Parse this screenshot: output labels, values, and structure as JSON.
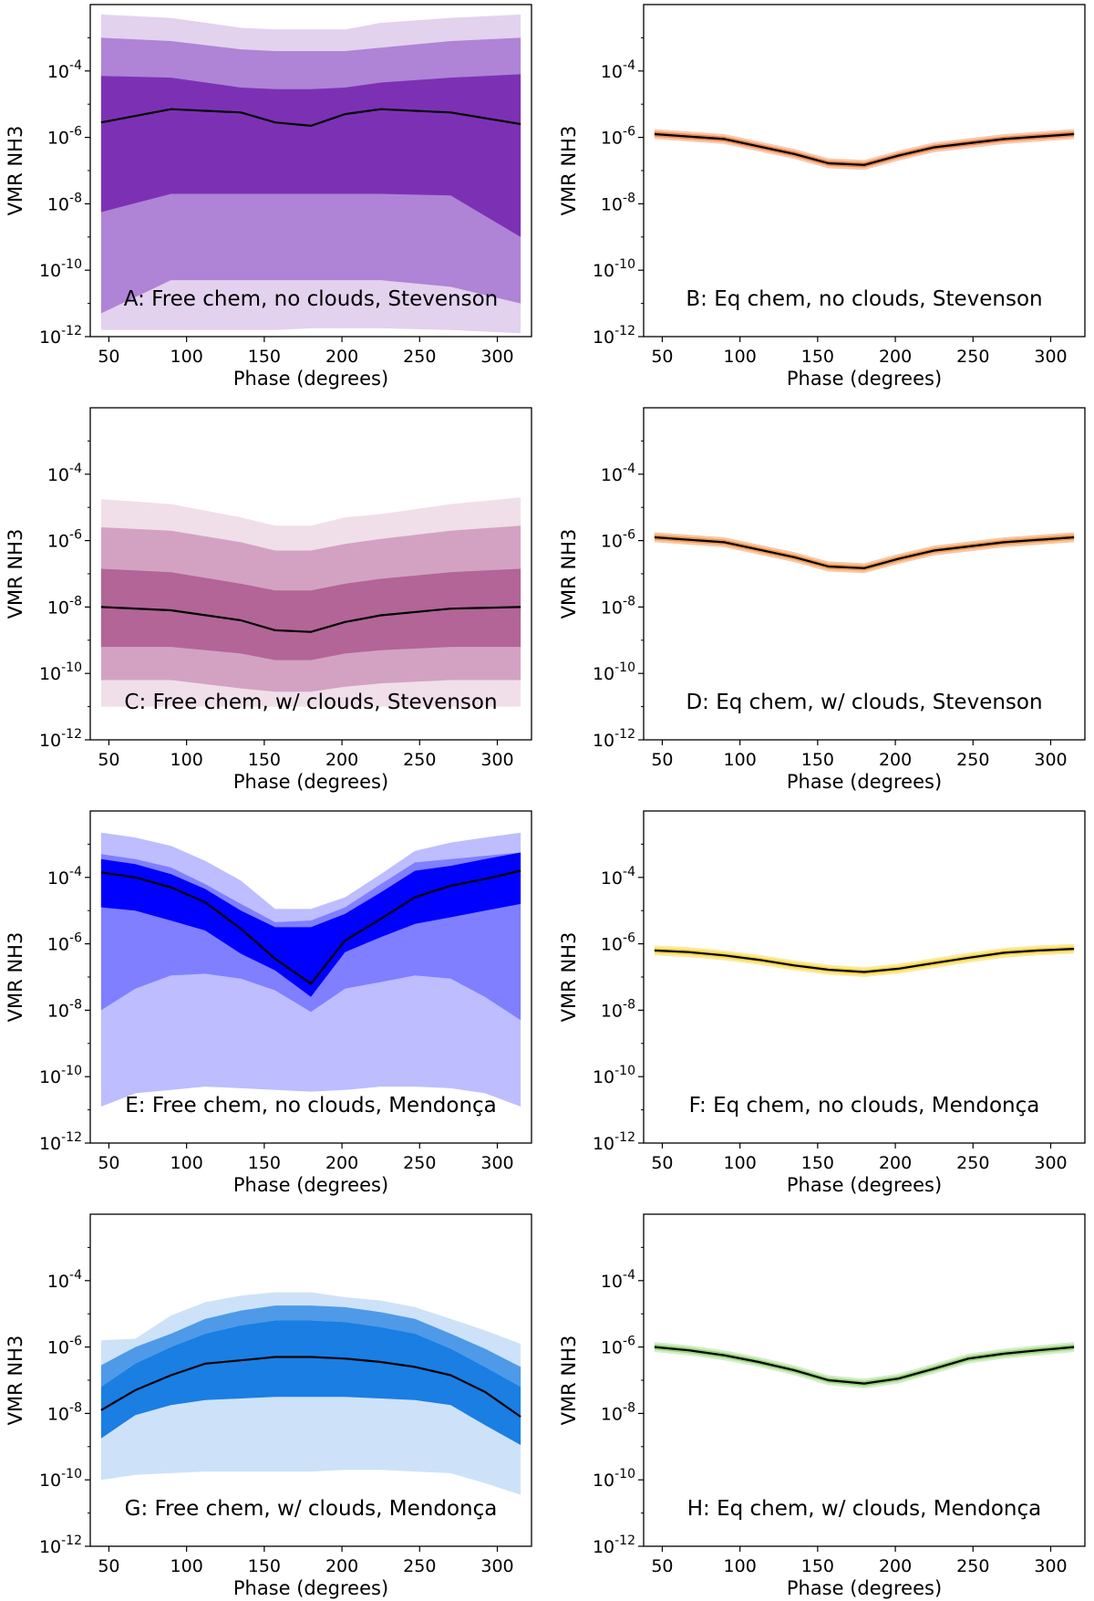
{
  "chart_data": [
    {
      "type": "area",
      "panel_label": "A: Free chem, no clouds, Stevenson",
      "xlabel": "Phase (degrees)",
      "ylabel": "VMR NH3",
      "xlim": [
        38,
        322
      ],
      "ylim_log10": [
        -12,
        -2
      ],
      "xticks": [
        "50",
        "100",
        "150",
        "200",
        "250",
        "300"
      ],
      "yticks": [
        "10^-4",
        "10^-6",
        "10^-8",
        "10^-10",
        "10^-12"
      ],
      "median_color": "#000000",
      "x": [
        45,
        90,
        135,
        157,
        180,
        202,
        225,
        270,
        315
      ],
      "series": [
        {
          "color": "#e2d2ee",
          "upper": [
            -2.3,
            -2.4,
            -2.7,
            -2.75,
            -2.75,
            -2.75,
            -2.55,
            -2.4,
            -2.3
          ],
          "lower": [
            -11.8,
            -11.8,
            -11.8,
            -11.8,
            -11.75,
            -11.75,
            -11.75,
            -11.8,
            -11.9
          ]
        },
        {
          "color": "#af83d6",
          "upper": [
            -3.0,
            -3.1,
            -3.35,
            -3.4,
            -3.4,
            -3.4,
            -3.3,
            -3.1,
            -3.0
          ],
          "lower": [
            -11.3,
            -10.3,
            -10.3,
            -10.3,
            -10.3,
            -10.3,
            -10.3,
            -10.5,
            -11.0
          ]
        },
        {
          "color": "#7c31b4",
          "upper": [
            -4.15,
            -4.2,
            -4.5,
            -4.55,
            -4.55,
            -4.5,
            -4.35,
            -4.2,
            -4.1
          ],
          "lower": [
            -8.25,
            -7.7,
            -7.7,
            -7.7,
            -7.7,
            -7.7,
            -7.7,
            -7.75,
            -9.0
          ]
        }
      ],
      "median": [
        -5.55,
        -5.15,
        -5.25,
        -5.55,
        -5.65,
        -5.3,
        -5.15,
        -5.25,
        -5.6
      ]
    },
    {
      "type": "area",
      "panel_label": "B: Eq chem, no clouds, Stevenson",
      "xlabel": "Phase (degrees)",
      "ylabel": "VMR NH3",
      "xlim": [
        38,
        322
      ],
      "ylim_log10": [
        -12,
        -2
      ],
      "xticks": [
        "50",
        "100",
        "150",
        "200",
        "250",
        "300"
      ],
      "yticks": [
        "10^-4",
        "10^-6",
        "10^-8",
        "10^-10",
        "10^-12"
      ],
      "median_color": "#000000",
      "x": [
        45,
        90,
        135,
        157,
        180,
        202,
        225,
        270,
        315
      ],
      "series": [
        {
          "color": "#f8c9ad",
          "upper": [
            -5.75,
            -5.9,
            -6.35,
            -6.63,
            -6.68,
            -6.4,
            -6.15,
            -5.9,
            -5.75
          ],
          "lower": [
            -6.05,
            -6.2,
            -6.65,
            -6.93,
            -6.98,
            -6.7,
            -6.45,
            -6.2,
            -6.05
          ]
        },
        {
          "color": "#ec8a56",
          "upper": [
            -5.82,
            -5.97,
            -6.42,
            -6.7,
            -6.75,
            -6.47,
            -6.22,
            -5.97,
            -5.82
          ],
          "lower": [
            -5.98,
            -6.13,
            -6.58,
            -6.86,
            -6.91,
            -6.63,
            -6.38,
            -6.13,
            -5.98
          ]
        }
      ],
      "median": [
        -5.9,
        -6.05,
        -6.5,
        -6.78,
        -6.83,
        -6.55,
        -6.3,
        -6.05,
        -5.9
      ]
    },
    {
      "type": "area",
      "panel_label": "C: Free chem, w/ clouds, Stevenson",
      "xlabel": "Phase (degrees)",
      "ylabel": "VMR NH3",
      "xlim": [
        38,
        322
      ],
      "ylim_log10": [
        -12,
        -2
      ],
      "xticks": [
        "50",
        "100",
        "150",
        "200",
        "250",
        "300"
      ],
      "yticks": [
        "10^-4",
        "10^-6",
        "10^-8",
        "10^-10",
        "10^-12"
      ],
      "median_color": "#000000",
      "x": [
        45,
        90,
        135,
        157,
        180,
        202,
        225,
        270,
        315
      ],
      "series": [
        {
          "color": "#f0dfe8",
          "upper": [
            -4.75,
            -4.9,
            -5.3,
            -5.55,
            -5.55,
            -5.3,
            -5.2,
            -4.9,
            -4.7
          ],
          "lower": [
            -11.0,
            -11.0,
            -11.0,
            -11.0,
            -11.0,
            -11.0,
            -11.0,
            -11.0,
            -11.0
          ]
        },
        {
          "color": "#d3a2c2",
          "upper": [
            -5.6,
            -5.7,
            -6.05,
            -6.3,
            -6.3,
            -6.1,
            -5.95,
            -5.7,
            -5.55
          ],
          "lower": [
            -10.2,
            -10.2,
            -10.45,
            -10.55,
            -10.55,
            -10.4,
            -10.3,
            -10.2,
            -10.2
          ]
        },
        {
          "color": "#b26596",
          "upper": [
            -6.85,
            -6.95,
            -7.3,
            -7.5,
            -7.5,
            -7.3,
            -7.15,
            -6.95,
            -6.85
          ],
          "lower": [
            -9.2,
            -9.2,
            -9.4,
            -9.6,
            -9.6,
            -9.4,
            -9.3,
            -9.2,
            -9.2
          ]
        }
      ],
      "median": [
        -8.0,
        -8.1,
        -8.4,
        -8.7,
        -8.75,
        -8.45,
        -8.25,
        -8.05,
        -8.0
      ]
    },
    {
      "type": "area",
      "panel_label": "D: Eq chem, w/ clouds, Stevenson",
      "xlabel": "Phase (degrees)",
      "ylabel": "VMR NH3",
      "xlim": [
        38,
        322
      ],
      "ylim_log10": [
        -12,
        -2
      ],
      "xticks": [
        "50",
        "100",
        "150",
        "200",
        "250",
        "300"
      ],
      "yticks": [
        "10^-4",
        "10^-6",
        "10^-8",
        "10^-10",
        "10^-12"
      ],
      "median_color": "#000000",
      "x": [
        45,
        90,
        135,
        157,
        180,
        202,
        225,
        270,
        315
      ],
      "series": [
        {
          "color": "#f7c8a4",
          "upper": [
            -5.75,
            -5.9,
            -6.35,
            -6.63,
            -6.68,
            -6.4,
            -6.15,
            -5.9,
            -5.75
          ],
          "lower": [
            -6.05,
            -6.2,
            -6.65,
            -6.93,
            -6.98,
            -6.7,
            -6.45,
            -6.2,
            -6.05
          ]
        },
        {
          "color": "#ee9a52",
          "upper": [
            -5.82,
            -5.97,
            -6.42,
            -6.7,
            -6.75,
            -6.47,
            -6.22,
            -5.97,
            -5.82
          ],
          "lower": [
            -5.98,
            -6.13,
            -6.58,
            -6.86,
            -6.91,
            -6.63,
            -6.38,
            -6.13,
            -5.98
          ]
        }
      ],
      "median": [
        -5.9,
        -6.05,
        -6.5,
        -6.78,
        -6.83,
        -6.55,
        -6.3,
        -6.05,
        -5.9
      ]
    },
    {
      "type": "area",
      "panel_label": "E: Free chem, no clouds, Mendonça",
      "xlabel": "Phase (degrees)",
      "ylabel": "VMR NH3",
      "xlim": [
        38,
        322
      ],
      "ylim_log10": [
        -12,
        -2
      ],
      "xticks": [
        "50",
        "100",
        "150",
        "200",
        "250",
        "300"
      ],
      "yticks": [
        "10^-4",
        "10^-6",
        "10^-8",
        "10^-10",
        "10^-12"
      ],
      "median_color": "#000000",
      "x": [
        45,
        67,
        90,
        112,
        135,
        157,
        180,
        202,
        225,
        247,
        270,
        292,
        315
      ],
      "series": [
        {
          "color": "#bdbdff",
          "upper": [
            -2.65,
            -2.8,
            -3.05,
            -3.5,
            -4.1,
            -4.95,
            -4.95,
            -4.6,
            -3.9,
            -3.2,
            -2.95,
            -2.8,
            -2.65
          ],
          "lower": [
            -10.9,
            -10.5,
            -10.4,
            -10.3,
            -10.35,
            -10.4,
            -10.45,
            -10.4,
            -10.3,
            -10.3,
            -10.35,
            -10.5,
            -10.9
          ]
        },
        {
          "color": "#7f7fff",
          "upper": [
            -3.3,
            -3.45,
            -3.7,
            -4.2,
            -4.8,
            -5.35,
            -5.3,
            -4.9,
            -4.2,
            -3.55,
            -3.45,
            -3.35,
            -3.25
          ],
          "lower": [
            -8.0,
            -7.35,
            -6.95,
            -6.9,
            -7.05,
            -7.4,
            -8.05,
            -7.35,
            -7.15,
            -6.95,
            -7.05,
            -7.6,
            -8.3
          ]
        },
        {
          "color": "#0000ff",
          "upper": [
            -3.45,
            -3.6,
            -3.9,
            -4.35,
            -5.0,
            -5.5,
            -5.5,
            -5.1,
            -4.45,
            -3.8,
            -3.65,
            -3.45,
            -3.25
          ],
          "lower": [
            -4.9,
            -5.0,
            -5.3,
            -5.6,
            -6.3,
            -6.8,
            -7.6,
            -6.25,
            -5.8,
            -5.4,
            -5.2,
            -5.0,
            -4.8
          ]
        }
      ],
      "median": [
        -3.85,
        -4.0,
        -4.3,
        -4.75,
        -5.55,
        -6.45,
        -7.2,
        -5.9,
        -5.25,
        -4.6,
        -4.25,
        -4.05,
        -3.8
      ]
    },
    {
      "type": "area",
      "panel_label": "F: Eq chem, no clouds, Mendonça",
      "xlabel": "Phase (degrees)",
      "ylabel": "VMR NH3",
      "xlim": [
        38,
        322
      ],
      "ylim_log10": [
        -12,
        -2
      ],
      "xticks": [
        "50",
        "100",
        "150",
        "200",
        "250",
        "300"
      ],
      "yticks": [
        "10^-4",
        "10^-6",
        "10^-8",
        "10^-10",
        "10^-12"
      ],
      "median_color": "#000000",
      "x": [
        45,
        67,
        90,
        112,
        135,
        157,
        180,
        202,
        225,
        247,
        270,
        292,
        315
      ],
      "series": [
        {
          "color": "#fbeb9c",
          "upper": [
            -6.05,
            -6.1,
            -6.2,
            -6.33,
            -6.5,
            -6.63,
            -6.7,
            -6.6,
            -6.43,
            -6.27,
            -6.12,
            -6.05,
            -6.0
          ],
          "lower": [
            -6.35,
            -6.4,
            -6.5,
            -6.63,
            -6.8,
            -6.93,
            -7.0,
            -6.9,
            -6.73,
            -6.57,
            -6.42,
            -6.35,
            -6.3
          ]
        },
        {
          "color": "#f5d54f",
          "upper": [
            -6.12,
            -6.17,
            -6.27,
            -6.4,
            -6.57,
            -6.7,
            -6.77,
            -6.67,
            -6.5,
            -6.34,
            -6.19,
            -6.12,
            -6.07
          ],
          "lower": [
            -6.28,
            -6.33,
            -6.43,
            -6.56,
            -6.73,
            -6.86,
            -6.93,
            -6.83,
            -6.66,
            -6.5,
            -6.35,
            -6.28,
            -6.23
          ]
        }
      ],
      "median": [
        -6.2,
        -6.25,
        -6.35,
        -6.48,
        -6.65,
        -6.78,
        -6.85,
        -6.75,
        -6.58,
        -6.42,
        -6.27,
        -6.2,
        -6.15
      ]
    },
    {
      "type": "area",
      "panel_label": "G: Free chem, w/ clouds, Mendonça",
      "xlabel": "Phase (degrees)",
      "ylabel": "VMR NH3",
      "xlim": [
        38,
        322
      ],
      "ylim_log10": [
        -12,
        -2
      ],
      "xticks": [
        "50",
        "100",
        "150",
        "200",
        "250",
        "300"
      ],
      "yticks": [
        "10^-4",
        "10^-6",
        "10^-8",
        "10^-10",
        "10^-12"
      ],
      "median_color": "#000000",
      "x": [
        45,
        67,
        90,
        112,
        135,
        157,
        180,
        202,
        225,
        247,
        270,
        292,
        315
      ],
      "series": [
        {
          "color": "#cde2f8",
          "upper": [
            -5.8,
            -5.75,
            -5.05,
            -4.65,
            -4.45,
            -4.35,
            -4.35,
            -4.5,
            -4.6,
            -4.8,
            -5.15,
            -5.5,
            -5.9
          ],
          "lower": [
            -10.0,
            -9.85,
            -9.8,
            -9.75,
            -9.75,
            -9.75,
            -9.75,
            -9.7,
            -9.7,
            -9.75,
            -9.8,
            -10.1,
            -10.45
          ]
        },
        {
          "color": "#4e9ae8",
          "upper": [
            -6.55,
            -6.0,
            -5.6,
            -5.15,
            -4.9,
            -4.75,
            -4.75,
            -4.8,
            -4.95,
            -5.15,
            -5.6,
            -6.05,
            -6.6
          ]
        },
        {
          "color": "#1a7ee2",
          "upper": [
            -7.2,
            -6.5,
            -6.0,
            -5.6,
            -5.35,
            -5.2,
            -5.2,
            -5.25,
            -5.4,
            -5.6,
            -6.05,
            -6.6,
            -7.2
          ],
          "lower": [
            -8.75,
            -8.05,
            -7.75,
            -7.6,
            -7.55,
            -7.5,
            -7.5,
            -7.5,
            -7.55,
            -7.6,
            -7.75,
            -8.35,
            -8.95
          ]
        }
      ],
      "median": [
        -7.9,
        -7.3,
        -6.85,
        -6.5,
        -6.4,
        -6.3,
        -6.3,
        -6.35,
        -6.45,
        -6.6,
        -6.85,
        -7.35,
        -8.1
      ]
    },
    {
      "type": "area",
      "panel_label": "H: Eq chem, w/ clouds, Mendonça",
      "xlabel": "Phase (degrees)",
      "ylabel": "VMR NH3",
      "xlim": [
        38,
        322
      ],
      "ylim_log10": [
        -12,
        -2
      ],
      "xticks": [
        "50",
        "100",
        "150",
        "200",
        "250",
        "300"
      ],
      "yticks": [
        "10^-4",
        "10^-6",
        "10^-8",
        "10^-10",
        "10^-12"
      ],
      "median_color": "#000000",
      "x": [
        45,
        67,
        90,
        112,
        135,
        157,
        180,
        202,
        225,
        247,
        270,
        292,
        315
      ],
      "series": [
        {
          "color": "#d3eec4",
          "upper": [
            -5.85,
            -5.95,
            -6.1,
            -6.3,
            -6.55,
            -6.85,
            -6.95,
            -6.8,
            -6.5,
            -6.2,
            -6.05,
            -5.95,
            -5.85
          ],
          "lower": [
            -6.15,
            -6.25,
            -6.4,
            -6.6,
            -6.85,
            -7.15,
            -7.25,
            -7.1,
            -6.8,
            -6.5,
            -6.35,
            -6.25,
            -6.15
          ]
        },
        {
          "color": "#98d27f",
          "upper": [
            -5.92,
            -6.02,
            -6.17,
            -6.37,
            -6.62,
            -6.92,
            -7.02,
            -6.87,
            -6.57,
            -6.27,
            -6.12,
            -6.02,
            -5.92
          ],
          "lower": [
            -6.08,
            -6.18,
            -6.33,
            -6.53,
            -6.78,
            -7.08,
            -7.18,
            -7.03,
            -6.73,
            -6.43,
            -6.28,
            -6.18,
            -6.08
          ]
        }
      ],
      "median": [
        -6.0,
        -6.1,
        -6.25,
        -6.45,
        -6.7,
        -7.0,
        -7.1,
        -6.95,
        -6.65,
        -6.35,
        -6.2,
        -6.1,
        -6.0
      ]
    }
  ]
}
